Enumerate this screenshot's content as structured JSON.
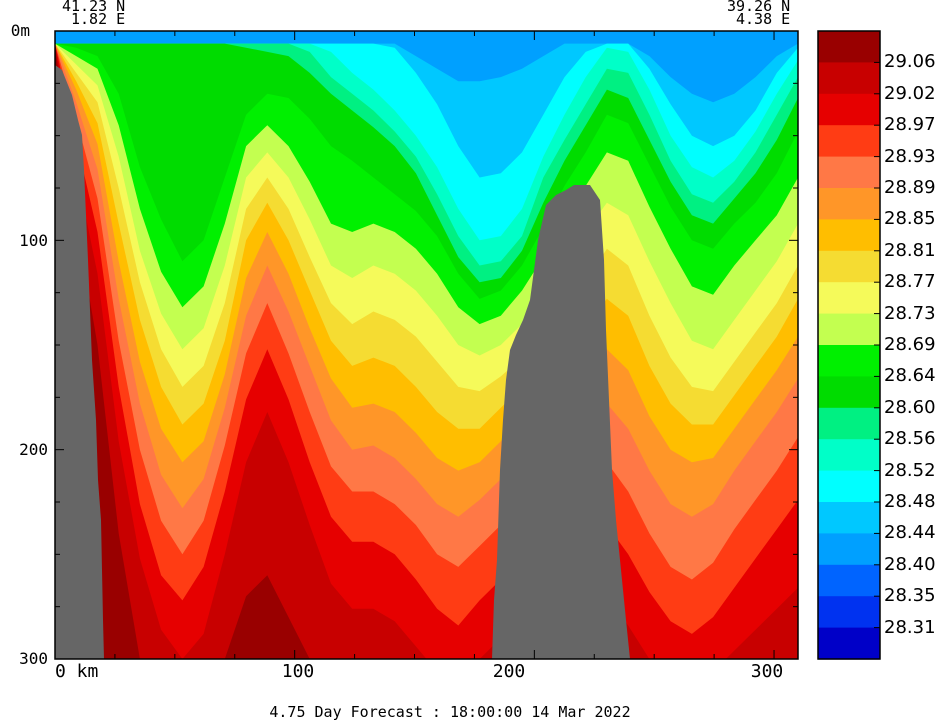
{
  "header": {
    "left_lat": "41.23 N",
    "left_lon": "1.82 E",
    "right_lat": "39.26 N",
    "right_lon": "4.38 E"
  },
  "footer": {
    "caption": "4.75 Day Forecast : 18:00:00  14 Mar 2022"
  },
  "chart_data": {
    "type": "heatmap",
    "title": "",
    "xlabel": "",
    "ylabel": "",
    "xlim": [
      0,
      310
    ],
    "ylim": [
      300,
      0
    ],
    "x_ticks": [
      {
        "value": 0,
        "label": "0 km"
      },
      {
        "value": 100,
        "label": "100"
      },
      {
        "value": 200,
        "label": "200"
      },
      {
        "value": 300,
        "label": "300"
      }
    ],
    "y_ticks": [
      {
        "value": 0,
        "label": "0m"
      },
      {
        "value": 100,
        "label": "100"
      },
      {
        "value": 200,
        "label": "200"
      },
      {
        "value": 300,
        "label": "300"
      }
    ],
    "colorbar": {
      "labels": [
        "29.06",
        "29.02",
        "28.97",
        "28.93",
        "28.89",
        "28.85",
        "28.81",
        "28.77",
        "28.73",
        "28.69",
        "28.64",
        "28.60",
        "28.56",
        "28.52",
        "28.48",
        "28.44",
        "28.40",
        "28.35",
        "28.31"
      ],
      "colors": [
        "#990000",
        "#c80000",
        "#e60000",
        "#ff3c14",
        "#ff7846",
        "#ff9628",
        "#ffbe00",
        "#f5dc32",
        "#f5fa5a",
        "#c3ff50",
        "#00f000",
        "#00dc00",
        "#00f082",
        "#00ffc8",
        "#00ffff",
        "#00c8ff",
        "#00a0ff",
        "#0064ff",
        "#0032f0",
        "#0000c8"
      ]
    },
    "contours": [
      {
        "level": 0,
        "color": "#00c8ff",
        "depths": [
          6,
          6,
          6,
          6,
          6,
          6,
          6,
          6,
          6,
          6,
          6,
          6,
          6,
          6,
          6,
          6,
          6,
          12,
          18,
          24,
          24,
          22,
          18,
          12,
          6,
          6,
          6,
          6,
          12,
          22,
          30,
          34,
          30,
          22,
          12,
          6
        ]
      },
      {
        "level": 1,
        "color": "#00ffff",
        "depths": [
          6,
          6,
          6,
          6,
          6,
          6,
          6,
          6,
          6,
          6,
          6,
          6,
          6,
          6,
          6,
          6,
          8,
          20,
          35,
          55,
          70,
          68,
          58,
          40,
          22,
          10,
          6,
          6,
          18,
          35,
          50,
          55,
          50,
          38,
          20,
          8
        ]
      },
      {
        "level": 2,
        "color": "#00ffc8",
        "depths": [
          6,
          6,
          6,
          6,
          6,
          6,
          6,
          6,
          6,
          6,
          6,
          6,
          6,
          10,
          20,
          28,
          38,
          50,
          65,
          85,
          100,
          98,
          85,
          60,
          40,
          22,
          8,
          10,
          28,
          50,
          65,
          70,
          62,
          48,
          30,
          14
        ]
      },
      {
        "level": 3,
        "color": "#00f082",
        "depths": [
          6,
          6,
          6,
          6,
          6,
          6,
          6,
          6,
          6,
          6,
          6,
          6,
          10,
          22,
          30,
          38,
          48,
          60,
          78,
          98,
          112,
          110,
          98,
          70,
          52,
          35,
          18,
          20,
          40,
          62,
          78,
          82,
          72,
          58,
          40,
          22
        ]
      },
      {
        "level": 4,
        "color": "#00dc00",
        "depths": [
          6,
          6,
          6,
          6,
          6,
          6,
          6,
          6,
          6,
          8,
          10,
          12,
          20,
          30,
          38,
          46,
          55,
          68,
          88,
          108,
          120,
          118,
          105,
          82,
          62,
          45,
          28,
          32,
          52,
          72,
          88,
          92,
          80,
          68,
          52,
          32
        ]
      },
      {
        "level": 5,
        "color": "#00f000",
        "depths": [
          6,
          8,
          12,
          30,
          65,
          90,
          110,
          100,
          70,
          40,
          30,
          32,
          42,
          55,
          62,
          70,
          78,
          86,
          98,
          116,
          128,
          124,
          112,
          94,
          74,
          58,
          40,
          44,
          64,
          84,
          100,
          104,
          92,
          82,
          68,
          48
        ]
      },
      {
        "level": 6,
        "color": "#c3ff50",
        "depths": [
          6,
          12,
          18,
          45,
          85,
          115,
          132,
          122,
          92,
          55,
          45,
          55,
          72,
          92,
          96,
          92,
          96,
          104,
          116,
          132,
          140,
          136,
          124,
          108,
          90,
          74,
          58,
          62,
          84,
          104,
          122,
          126,
          112,
          100,
          88,
          70
        ]
      },
      {
        "level": 7,
        "color": "#f5fa5a",
        "depths": [
          6,
          16,
          26,
          60,
          105,
          135,
          152,
          142,
          112,
          70,
          58,
          70,
          90,
          112,
          118,
          112,
          116,
          124,
          136,
          150,
          155,
          150,
          140,
          126,
          110,
          96,
          82,
          88,
          110,
          130,
          148,
          152,
          138,
          124,
          110,
          92
        ]
      },
      {
        "level": 8,
        "color": "#f5dc32",
        "depths": [
          6,
          20,
          34,
          75,
          120,
          152,
          170,
          160,
          130,
          85,
          70,
          85,
          108,
          130,
          140,
          134,
          138,
          146,
          158,
          170,
          172,
          165,
          156,
          144,
          132,
          120,
          104,
          112,
          136,
          156,
          170,
          172,
          158,
          144,
          130,
          112
        ]
      },
      {
        "level": 9,
        "color": "#ffbe00",
        "depths": [
          6,
          24,
          44,
          92,
          138,
          170,
          188,
          178,
          148,
          100,
          82,
          100,
          124,
          148,
          160,
          156,
          160,
          170,
          182,
          190,
          190,
          180,
          170,
          160,
          150,
          140,
          128,
          136,
          160,
          178,
          188,
          188,
          174,
          160,
          146,
          128
        ]
      },
      {
        "level": 10,
        "color": "#ff9628",
        "depths": [
          6,
          28,
          54,
          110,
          158,
          190,
          206,
          196,
          164,
          118,
          96,
          116,
          142,
          166,
          180,
          178,
          182,
          192,
          204,
          210,
          206,
          196,
          186,
          176,
          168,
          160,
          152,
          162,
          184,
          200,
          206,
          204,
          190,
          176,
          162,
          146
        ]
      },
      {
        "level": 11,
        "color": "#ff7846",
        "depths": [
          6,
          34,
          66,
          128,
          178,
          212,
          228,
          214,
          180,
          136,
          112,
          134,
          160,
          186,
          200,
          198,
          204,
          214,
          226,
          232,
          224,
          214,
          204,
          196,
          188,
          182,
          178,
          190,
          210,
          226,
          232,
          226,
          210,
          196,
          182,
          166
        ]
      },
      {
        "level": 12,
        "color": "#ff3c14",
        "depths": [
          6,
          42,
          80,
          148,
          200,
          234,
          250,
          234,
          198,
          154,
          130,
          154,
          182,
          208,
          220,
          220,
          226,
          236,
          250,
          256,
          246,
          236,
          226,
          218,
          212,
          208,
          206,
          220,
          240,
          256,
          262,
          254,
          238,
          224,
          210,
          194
        ]
      },
      {
        "level": 13,
        "color": "#e60000",
        "depths": [
          6,
          52,
          96,
          170,
          226,
          260,
          272,
          256,
          220,
          176,
          152,
          176,
          206,
          232,
          244,
          244,
          250,
          262,
          276,
          284,
          272,
          262,
          252,
          244,
          238,
          236,
          236,
          250,
          268,
          282,
          288,
          280,
          266,
          252,
          238,
          224
        ]
      },
      {
        "level": 14,
        "color": "#c80000",
        "depths": [
          6,
          66,
          116,
          196,
          252,
          286,
          300,
          288,
          250,
          206,
          182,
          206,
          236,
          264,
          276,
          276,
          282,
          294,
          306,
          310,
          300,
          290,
          282,
          274,
          270,
          268,
          270,
          284,
          300,
          310,
          310,
          306,
          296,
          286,
          276,
          266
        ]
      },
      {
        "level": 15,
        "color": "#990000",
        "depths": [
          6,
          90,
          150,
          240,
          300,
          320,
          320,
          320,
          300,
          270,
          260,
          280,
          300,
          320,
          320,
          320,
          320,
          320,
          320,
          320,
          320,
          320,
          320,
          320,
          320,
          320,
          320,
          320,
          320,
          320,
          320,
          320,
          320,
          320,
          320,
          320
        ]
      }
    ]
  }
}
